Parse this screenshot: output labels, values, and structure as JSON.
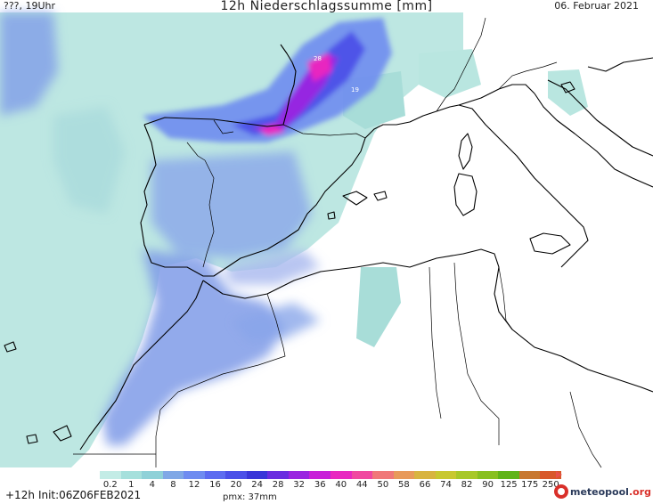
{
  "header": {
    "left": "???, 19Uhr",
    "title": "12h Niederschlagssumme [mm]",
    "date": "06. Februar 2021"
  },
  "map": {
    "labels": [
      {
        "text": "28"
      },
      {
        "text": "19"
      }
    ]
  },
  "legend": {
    "ticks": [
      "0.2",
      "1",
      "4",
      "8",
      "12",
      "16",
      "20",
      "24",
      "28",
      "32",
      "36",
      "40",
      "44",
      "50",
      "58",
      "66",
      "74",
      "82",
      "90",
      "125",
      "175",
      "250"
    ],
    "colors": [
      "#c3ece6",
      "#a6e0dc",
      "#8fd1d8",
      "#80a8e6",
      "#6f8cf0",
      "#5d6cf0",
      "#4b50e8",
      "#3a36d8",
      "#6a2de0",
      "#9a24e0",
      "#c820d8",
      "#e828c0",
      "#f048a0",
      "#f07878",
      "#e89a5a",
      "#d8b440",
      "#c8c830",
      "#a8c828",
      "#88c020",
      "#60b418",
      "#c87830",
      "#d8582a"
    ]
  },
  "footer": {
    "forecast": "+12h",
    "init": "Init:06Z06FEB2021",
    "pmx": "pmx: 37mm",
    "logo": {
      "name": "meteopool",
      "tld": ".org"
    }
  }
}
